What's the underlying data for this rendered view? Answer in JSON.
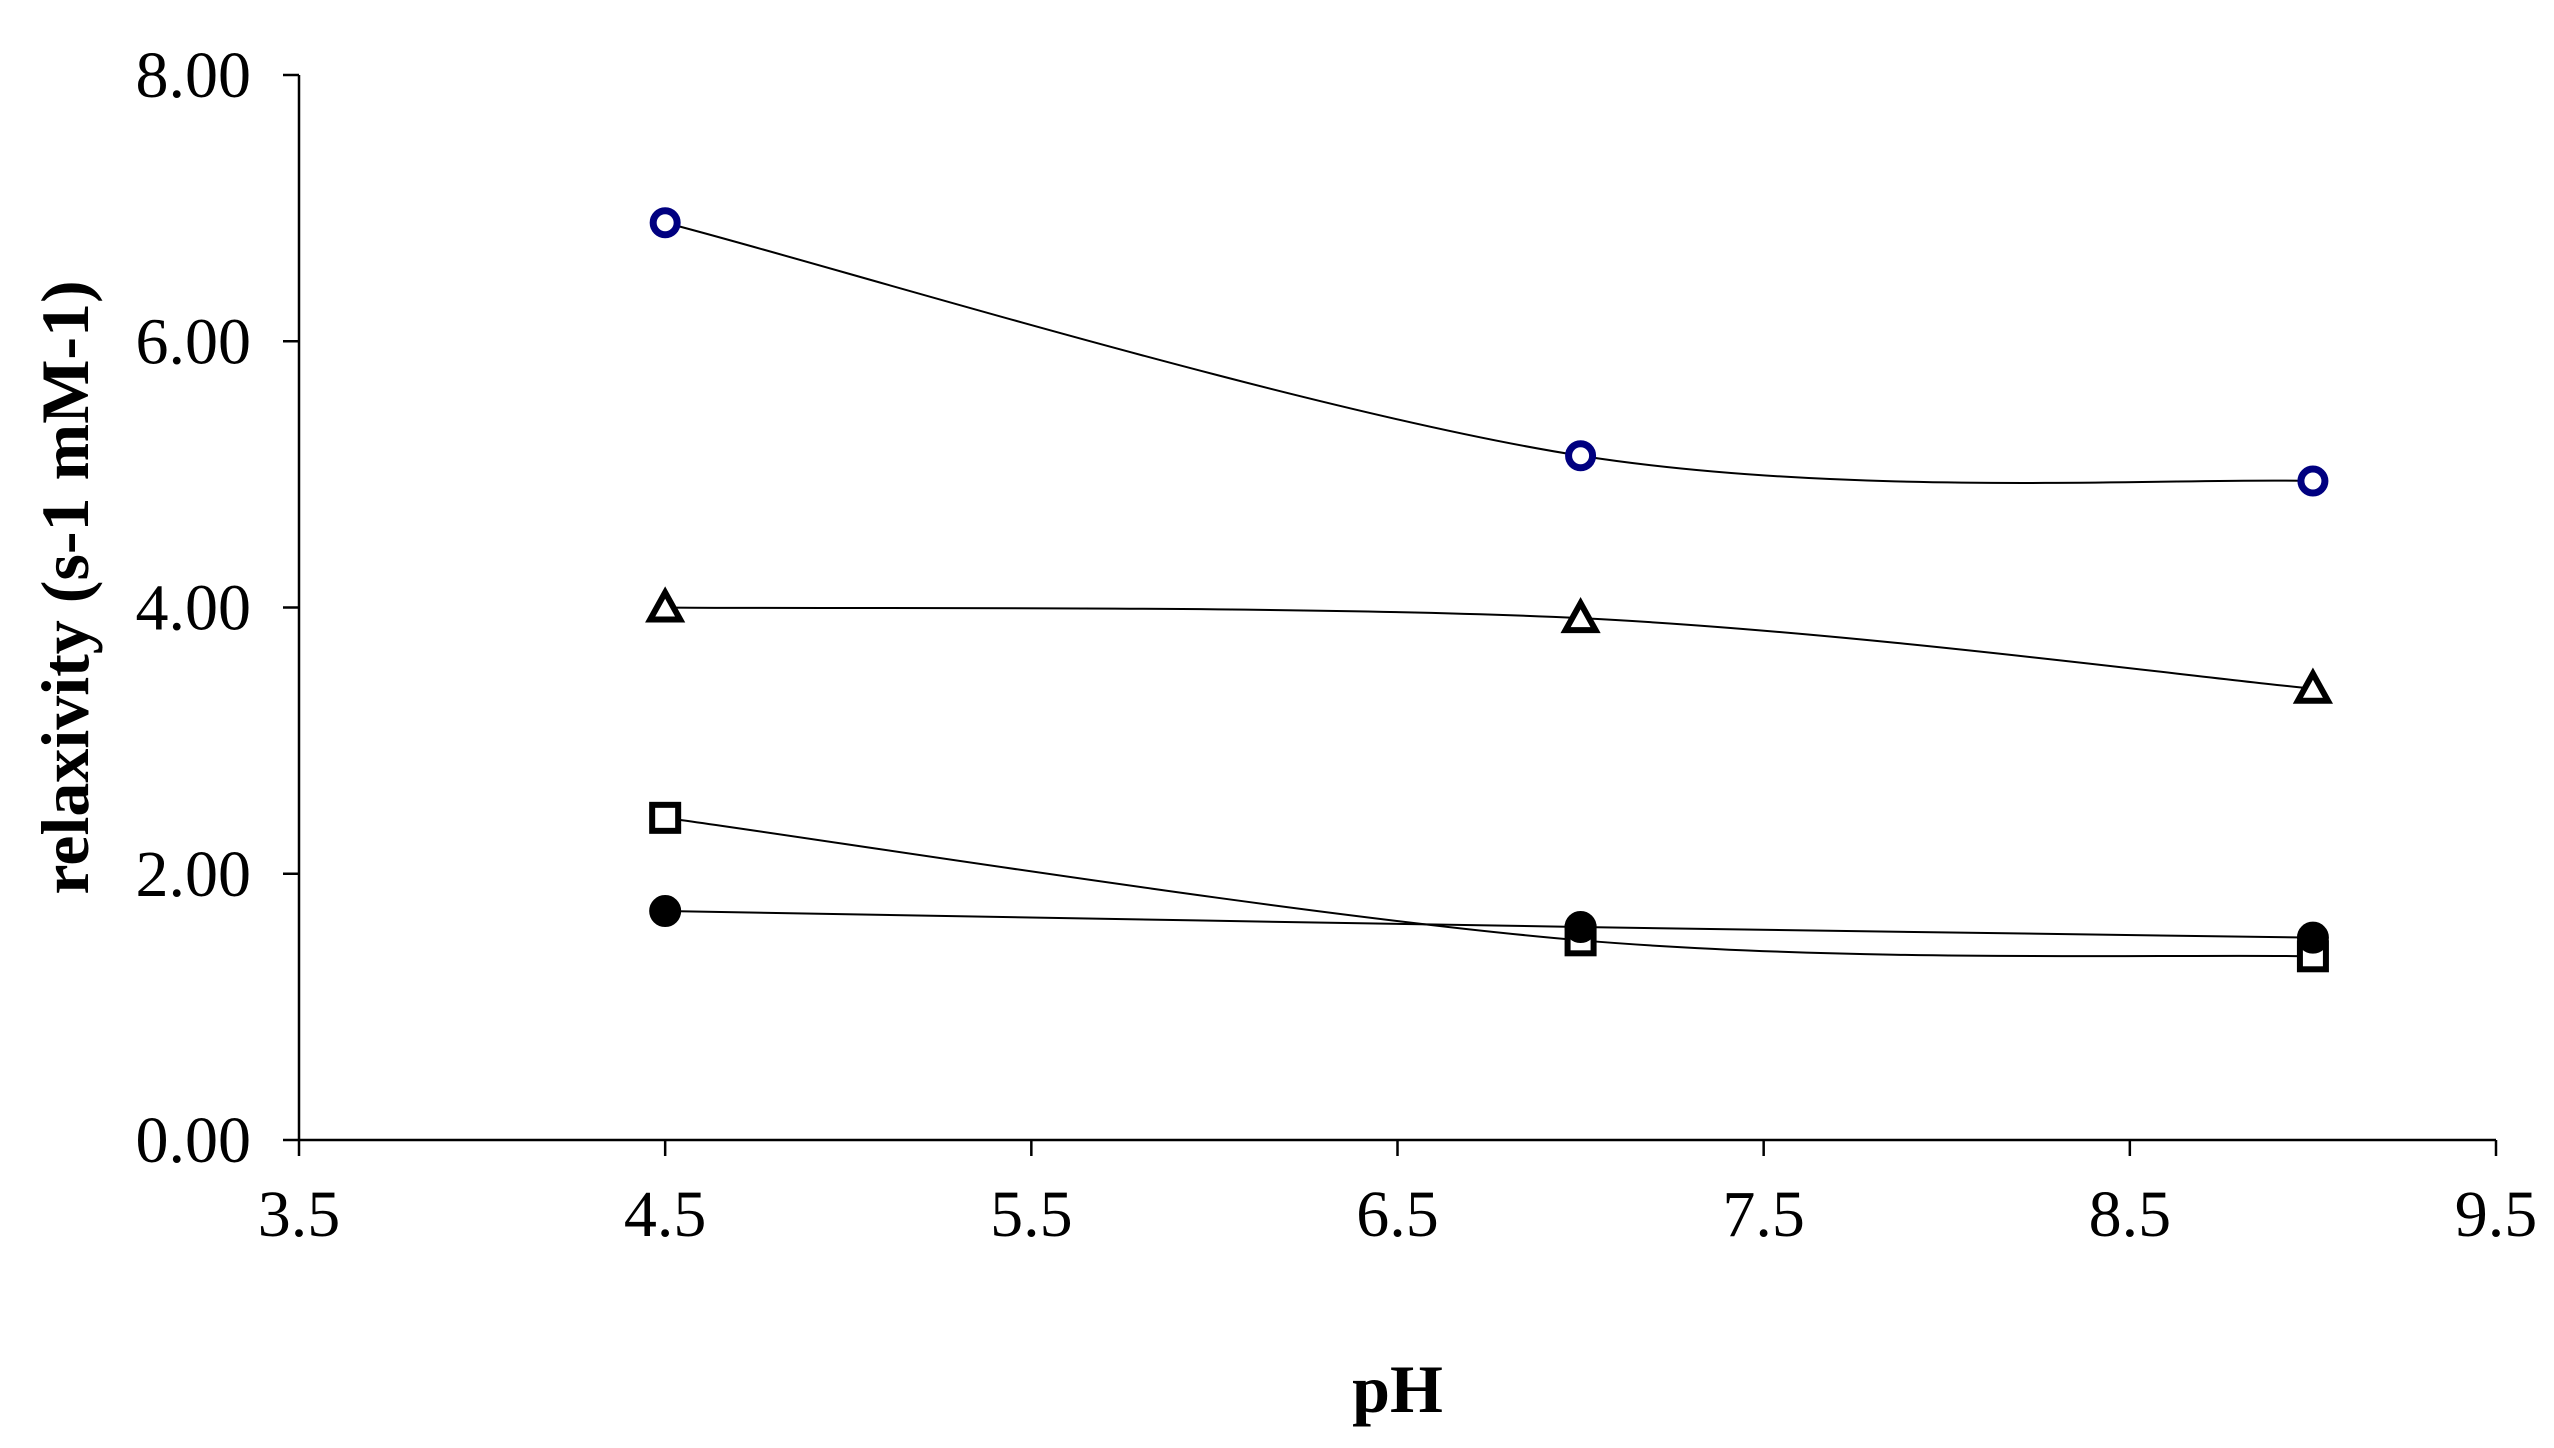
{
  "chart_data": {
    "type": "line",
    "title": "",
    "xlabel": "pH",
    "ylabel": "relaxivity (s-1 mM-1)",
    "xlim": [
      3.5,
      9.5
    ],
    "ylim": [
      0,
      8
    ],
    "x_ticks": [
      "3.5",
      "4.5",
      "5.5",
      "6.5",
      "7.5",
      "8.5",
      "9.5"
    ],
    "y_ticks": [
      "0.00",
      "2.00",
      "4.00",
      "6.00",
      "8.00"
    ],
    "x": [
      4.5,
      7,
      9
    ],
    "grid": false,
    "legend": "none",
    "series": [
      {
        "name": "open circle",
        "marker": "open-circle",
        "color": "#000080",
        "values": [
          6.89,
          5.14,
          4.95
        ]
      },
      {
        "name": "open triangle",
        "marker": "open-triangle",
        "color": "#000000",
        "values": [
          4.0,
          3.92,
          3.39
        ]
      },
      {
        "name": "open square",
        "marker": "open-square",
        "color": "#000000",
        "values": [
          2.42,
          1.5,
          1.38
        ]
      },
      {
        "name": "filled circle",
        "marker": "filled-circle",
        "color": "#000000",
        "values": [
          1.72,
          1.6,
          1.52
        ]
      }
    ]
  }
}
